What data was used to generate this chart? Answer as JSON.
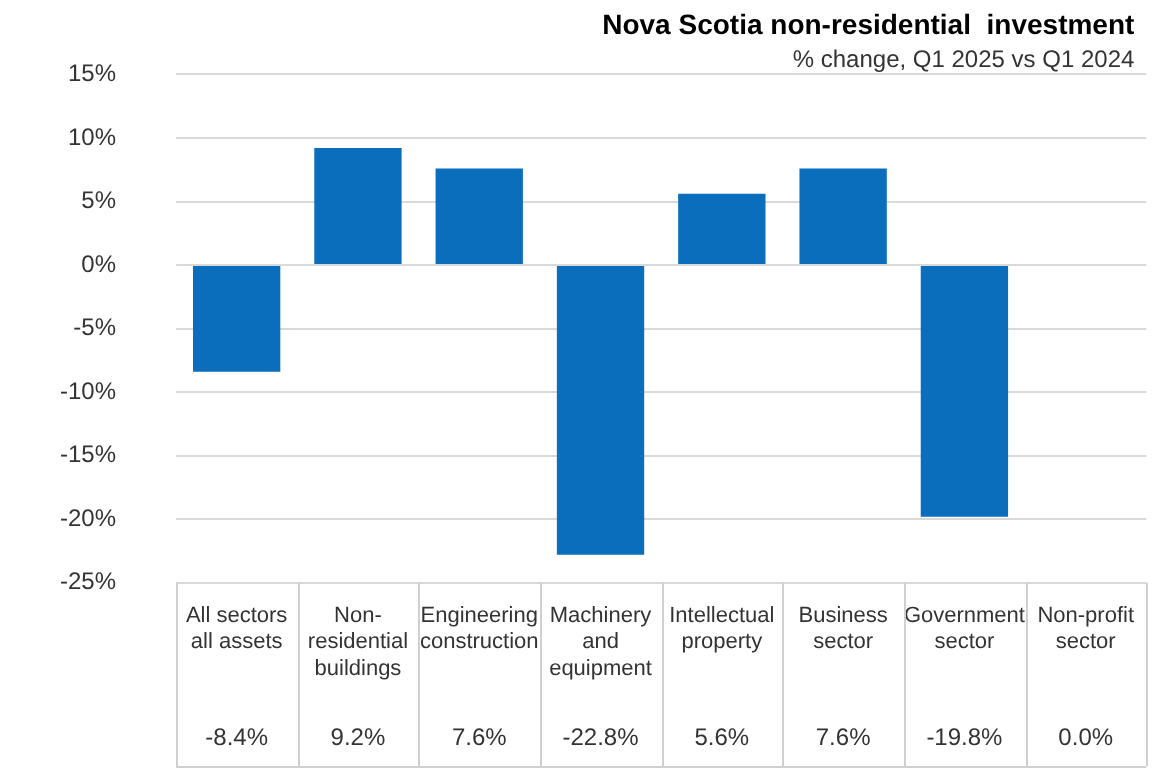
{
  "chart_data": {
    "type": "bar",
    "title": "Nova Scotia non-residential  investment",
    "subtitle": "% change, Q1 2025 vs Q1 2024",
    "categories": [
      "All sectors all assets",
      "Non-residential buildings",
      "Engineering construction",
      "Machinery and equipment",
      "Intellectual property",
      "Business sector",
      "Government sector",
      "Non-profit sector"
    ],
    "values": [
      -8.4,
      9.2,
      7.6,
      -22.8,
      5.6,
      7.6,
      -19.8,
      0.0
    ],
    "color": "#0a6ebd",
    "value_labels": [
      "-8.4%",
      "9.2%",
      "7.6%",
      "-22.8%",
      "5.6%",
      "7.6%",
      "-19.8%",
      "0.0%"
    ],
    "ylim": [
      -25,
      15
    ],
    "yticks": [
      {
        "value": -25,
        "label": "-25%"
      },
      {
        "value": -20,
        "label": "-20%"
      },
      {
        "value": -15,
        "label": "-15%"
      },
      {
        "value": -10,
        "label": "-10%"
      },
      {
        "value": -5,
        "label": "-5%"
      },
      {
        "value": 0,
        "label": "0%"
      },
      {
        "value": 5,
        "label": "5%"
      },
      {
        "value": 10,
        "label": "10%"
      },
      {
        "value": 15,
        "label": "15%"
      }
    ],
    "grid": "y",
    "legend": false
  }
}
